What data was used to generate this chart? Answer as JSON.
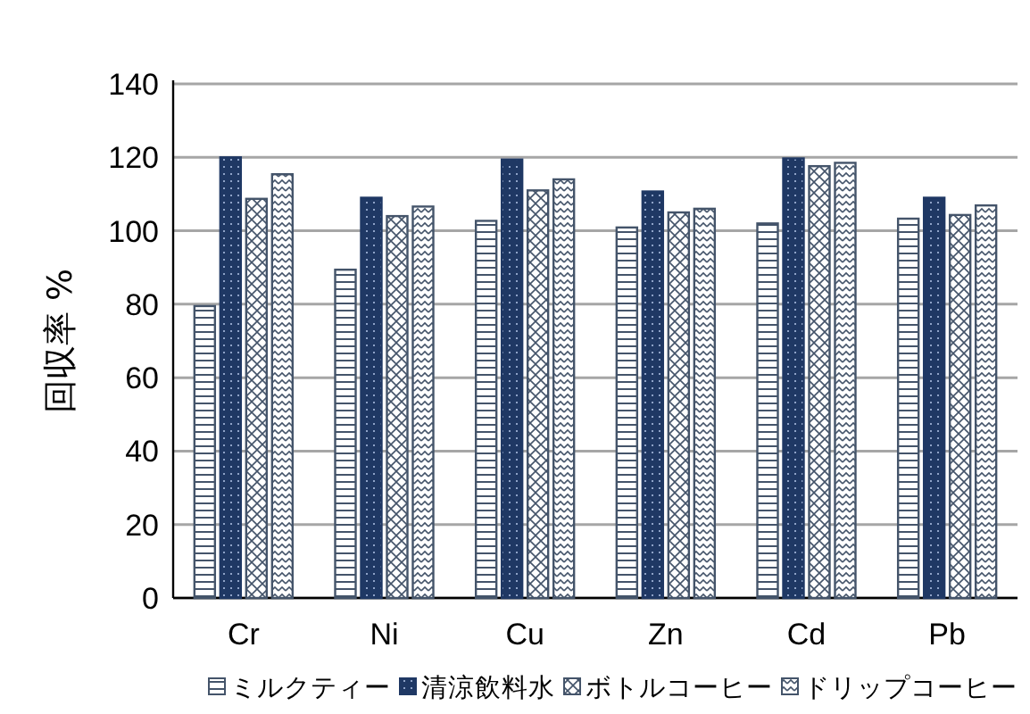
{
  "chart_data": {
    "type": "bar",
    "ylabel": "回収率 %",
    "categories": [
      "Cr",
      "Ni",
      "Cu",
      "Zn",
      "Cd",
      "Pb"
    ],
    "series": [
      {
        "name": "ミルクティー",
        "color": "#44546a",
        "values": [
          79.5,
          89.4,
          102.7,
          100.9,
          102,
          103.3
        ]
      },
      {
        "name": "清涼飲料水",
        "color": "#1f3864",
        "values": [
          120,
          109,
          119.4,
          110.7,
          119.7,
          109
        ]
      },
      {
        "name": "ボトルコーヒー",
        "color": "#44546a",
        "values": [
          108.7,
          104,
          111,
          105,
          117.6,
          104.3
        ]
      },
      {
        "name": "ドリップコーヒー",
        "color": "#44546a",
        "values": [
          115.4,
          106.6,
          114,
          106,
          118.5,
          106.9
        ]
      }
    ],
    "ylim": [
      0,
      140
    ],
    "yticks": [
      0,
      20,
      40,
      60,
      80,
      100,
      120,
      140
    ],
    "grid": "y",
    "legend": "bottom"
  }
}
